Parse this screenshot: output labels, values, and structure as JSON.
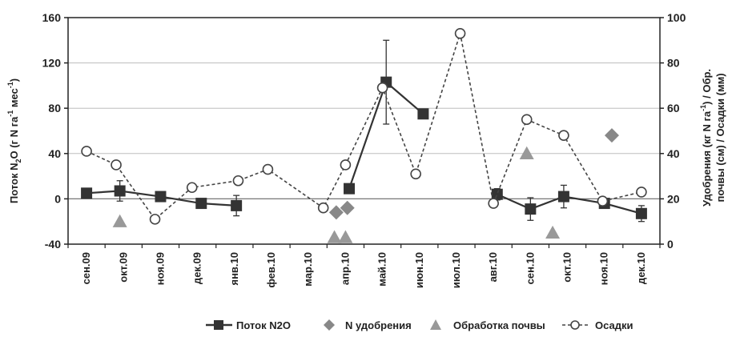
{
  "chart_data": {
    "type": "line",
    "categories": [
      "сен.09",
      "окт.09",
      "ноя.09",
      "дек.09",
      "янв.10",
      "фев.10",
      "мар.10",
      "апр.10",
      "май.10",
      "июн.10",
      "июл.10",
      "авг.10",
      "сен.10",
      "окт.10",
      "ноя.10",
      "дек.10"
    ],
    "y_left": {
      "label_main": "Поток N",
      "label_sub2": "2",
      "label_mid": "O (г N га",
      "label_sup": "-1",
      "label_end": " мес",
      "label_sup2": "-1",
      "label_close": ")",
      "ylim": [
        -40,
        160
      ],
      "ticks": [
        -40,
        0,
        40,
        80,
        120,
        160
      ]
    },
    "y_right": {
      "line1_pre": "Удобрения (кг N га",
      "line1_sup": "-1",
      "line1_post": ") / Обр.",
      "line2": "почвы (см) / Осадки (мм)",
      "ylim": [
        0,
        100
      ],
      "ticks": [
        0,
        20,
        40,
        60,
        80,
        100
      ]
    },
    "series": [
      {
        "name": "Поток N2O",
        "axis": "left",
        "marker": "square",
        "style": "solid",
        "points": [
          {
            "x": 0.0,
            "y": 5
          },
          {
            "x": 0.9,
            "y": 7,
            "err": 9
          },
          {
            "x": 2.0,
            "y": 2
          },
          {
            "x": 3.1,
            "y": -4
          },
          {
            "x": 4.05,
            "y": -6,
            "err": 9
          },
          {
            "x": 7.1,
            "y": 9
          },
          {
            "x": 8.1,
            "y": 103,
            "err": 37
          },
          {
            "x": 9.1,
            "y": 75
          },
          {
            "x": 11.1,
            "y": 4,
            "err": 5
          },
          {
            "x": 12.0,
            "y": -9,
            "err": 10
          },
          {
            "x": 12.9,
            "y": 2,
            "err": 10
          },
          {
            "x": 14.0,
            "y": -4
          },
          {
            "x": 15.0,
            "y": -13,
            "err": 7
          }
        ]
      },
      {
        "name": "N удобрения",
        "axis": "right",
        "marker": "diamond",
        "points": [
          {
            "x": 6.75,
            "y": 14
          },
          {
            "x": 7.05,
            "y": 16
          },
          {
            "x": 14.2,
            "y": 48
          }
        ]
      },
      {
        "name": "Обработка почвы",
        "axis": "right",
        "marker": "triangle",
        "points": [
          {
            "x": 0.9,
            "y": 10
          },
          {
            "x": 6.7,
            "y": 3
          },
          {
            "x": 7.0,
            "y": 3
          },
          {
            "x": 11.9,
            "y": 40
          },
          {
            "x": 12.6,
            "y": 5
          }
        ]
      },
      {
        "name": "Осадки",
        "axis": "right",
        "marker": "circle-open",
        "style": "dashed",
        "points": [
          {
            "x": 0.0,
            "y": 41
          },
          {
            "x": 0.8,
            "y": 35
          },
          {
            "x": 1.85,
            "y": 11
          },
          {
            "x": 2.85,
            "y": 25
          },
          {
            "x": 4.1,
            "y": 28
          },
          {
            "x": 4.9,
            "y": 33
          },
          {
            "x": 6.4,
            "y": 16
          },
          {
            "x": 7.0,
            "y": 35
          },
          {
            "x": 8.0,
            "y": 69
          },
          {
            "x": 8.9,
            "y": 31
          },
          {
            "x": 10.1,
            "y": 93
          },
          {
            "x": 11.0,
            "y": 18
          },
          {
            "x": 11.9,
            "y": 55
          },
          {
            "x": 12.9,
            "y": 48
          },
          {
            "x": 13.95,
            "y": 19
          },
          {
            "x": 15.0,
            "y": 23
          }
        ]
      }
    ],
    "legend": {
      "placement": "bottom",
      "items": [
        {
          "label": "Поток N2O",
          "marker": "square-line"
        },
        {
          "label": "N удобрения",
          "marker": "diamond"
        },
        {
          "label": "Обработка почвы",
          "marker": "triangle"
        },
        {
          "label": "Осадки",
          "marker": "circle-dashed"
        }
      ]
    },
    "grid": {
      "horizontal": true,
      "vertical": false
    },
    "colors": {
      "flux": "#333333",
      "fertilizer": "#888888",
      "tillage": "#999999",
      "precip": "#444444",
      "axis": "#222222",
      "grid": "#bdbdbd"
    }
  }
}
